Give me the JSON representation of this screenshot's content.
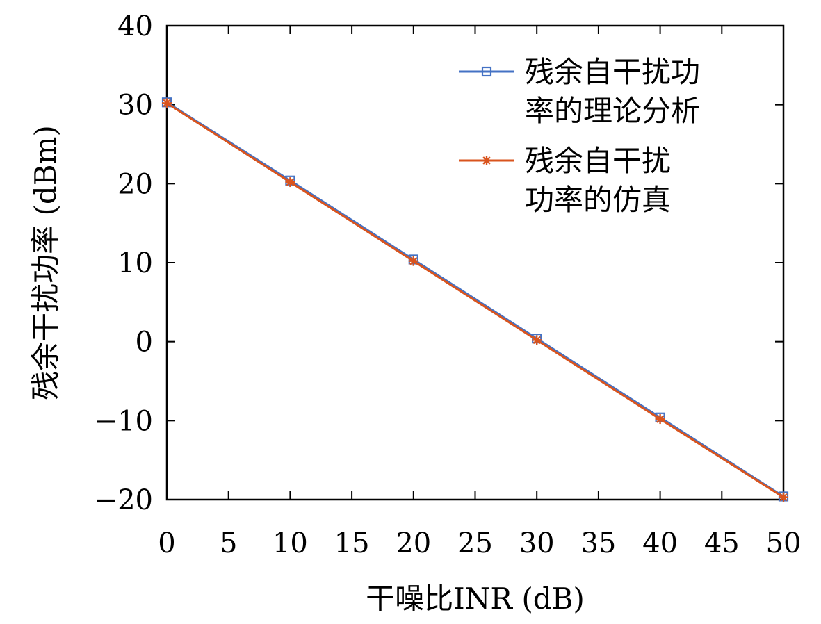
{
  "chart_data": {
    "type": "line",
    "xlabel": "干噪比INR (dB)",
    "ylabel": "残余干扰功率 (dBm)",
    "xlim": [
      0,
      50
    ],
    "ylim": [
      -20,
      40
    ],
    "xticks": [
      "0",
      "5",
      "10",
      "15",
      "20",
      "25",
      "30",
      "35",
      "40",
      "45",
      "50"
    ],
    "yticks": [
      "−20",
      "−10",
      "0",
      "10",
      "20",
      "30",
      "40"
    ],
    "grid": false,
    "legend_position": "top-right",
    "x": [
      0,
      10,
      20,
      30,
      40,
      50
    ],
    "series": [
      {
        "name": "残余自干扰功率的理论分析",
        "legend_lines": [
          "残余自干扰功",
          "率的理论分析"
        ],
        "color": "#4472C4",
        "marker": "square",
        "values": [
          30.3,
          20.4,
          10.4,
          0.4,
          -9.6,
          -19.6
        ]
      },
      {
        "name": "残余自干扰功率的仿真",
        "legend_lines": [
          "残余自干扰",
          "功率的仿真"
        ],
        "color": "#D9541E",
        "marker": "asterisk",
        "values": [
          30.2,
          20.2,
          10.2,
          0.2,
          -9.8,
          -19.7
        ]
      }
    ]
  }
}
